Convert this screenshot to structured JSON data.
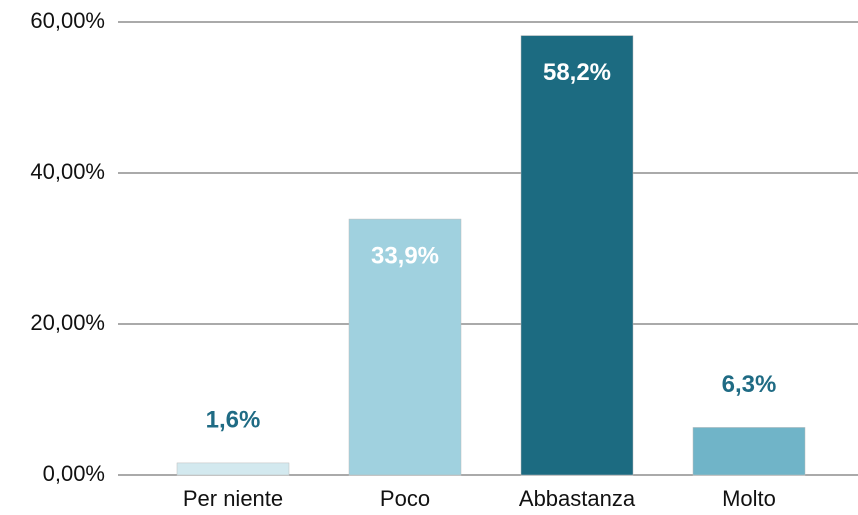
{
  "chart_data": {
    "type": "bar",
    "categories": [
      "Per niente",
      "Poco",
      "Abbastanza",
      "Molto"
    ],
    "values": [
      1.6,
      33.9,
      58.2,
      6.3
    ],
    "value_labels": [
      "1,6%",
      "33,9%",
      "58,2%",
      "6,3%"
    ],
    "colors": [
      "#d3e9ef",
      "#a0d1df",
      "#1c6b81",
      "#70b4c8"
    ],
    "ylim": [
      0,
      60
    ],
    "yticks": [
      {
        "value": 0,
        "label": "0,00%"
      },
      {
        "value": 20,
        "label": "20,00%"
      },
      {
        "value": 40,
        "label": "40,00%"
      },
      {
        "value": 60,
        "label": "60,00%"
      }
    ],
    "grid": true
  }
}
